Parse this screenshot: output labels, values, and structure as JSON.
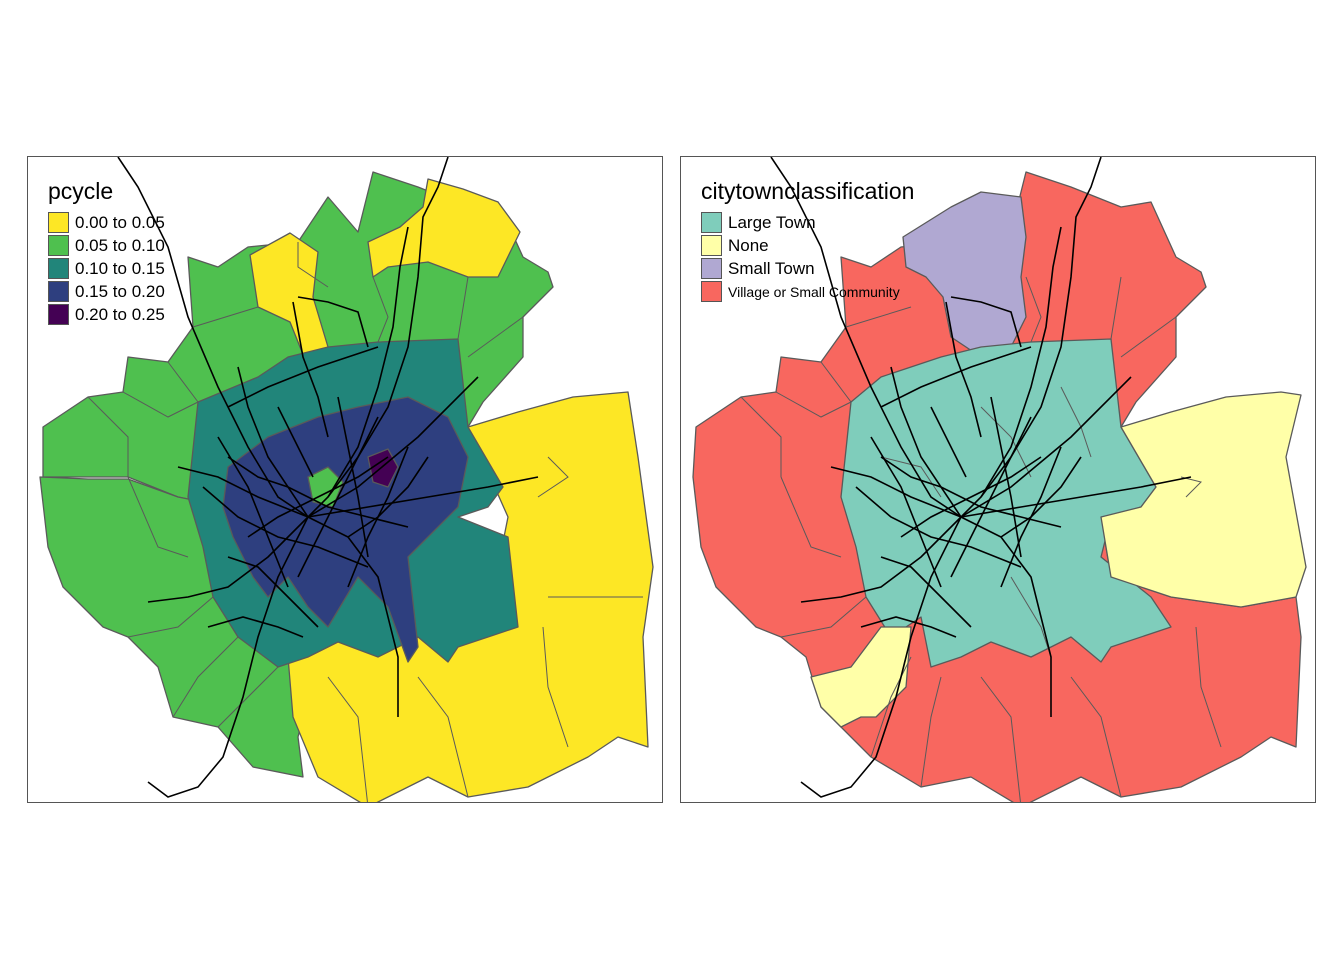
{
  "maps": [
    {
      "id": "pcycle",
      "legend": {
        "title": "pcycle",
        "items": [
          {
            "label": "0.00 to 0.05",
            "color": "#FDE725"
          },
          {
            "label": "0.05 to 0.10",
            "color": "#4FC04F"
          },
          {
            "label": "0.10 to 0.15",
            "color": "#21857A"
          },
          {
            "label": "0.15 to 0.20",
            "color": "#2E3F7F"
          },
          {
            "label": "0.20 to 0.25",
            "color": "#440154"
          }
        ]
      }
    },
    {
      "id": "citytownclassification",
      "legend": {
        "title": "citytownclassification",
        "items": [
          {
            "label": "Large Town",
            "color": "#7FCDBB"
          },
          {
            "label": "None",
            "color": "#FFFFA8"
          },
          {
            "label": "Small Town",
            "color": "#B0A8D2"
          },
          {
            "label": "Village or Small Community",
            "color": "#F8675F"
          }
        ]
      }
    }
  ],
  "colors": {
    "border": "#5a5a5a",
    "routes": "#000000"
  }
}
